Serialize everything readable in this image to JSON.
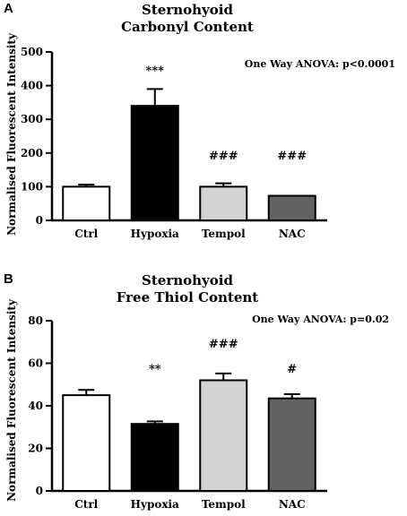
{
  "chart_data": [
    {
      "panel": "A",
      "type": "bar",
      "title": [
        "Sternohyoid",
        "Carbonyl Content"
      ],
      "annotation": "One Way ANOVA: p<0.0001",
      "ylabel": "Normalised Fluorescent Intensity",
      "ylim": [
        0,
        500
      ],
      "yticks": [
        0,
        100,
        200,
        300,
        400,
        500
      ],
      "categories": [
        "Ctrl",
        "Hypoxia",
        "Tempol",
        "NAC"
      ],
      "values": [
        100,
        340,
        100,
        73
      ],
      "errors": [
        6,
        50,
        10,
        0
      ],
      "fills": [
        "#ffffff",
        "#000000",
        "#d3d3d3",
        "#636363"
      ],
      "significance": [
        "",
        "***",
        "###",
        "###"
      ]
    },
    {
      "panel": "B",
      "type": "bar",
      "title": [
        "Sternohyoid",
        "Free Thiol Content"
      ],
      "annotation": "One Way ANOVA: p=0.02",
      "ylabel": "Normalised Fluorescent Intensity",
      "ylim": [
        0,
        80
      ],
      "yticks": [
        0,
        20,
        40,
        60,
        80
      ],
      "categories": [
        "Ctrl",
        "Hypoxia",
        "Tempol",
        "NAC"
      ],
      "values": [
        45,
        31.5,
        52,
        43.5
      ],
      "errors": [
        2.5,
        1.2,
        3.2,
        2
      ],
      "fills": [
        "#ffffff",
        "#000000",
        "#d3d3d3",
        "#636363"
      ],
      "significance": [
        "",
        "**",
        "###",
        "#"
      ]
    }
  ]
}
